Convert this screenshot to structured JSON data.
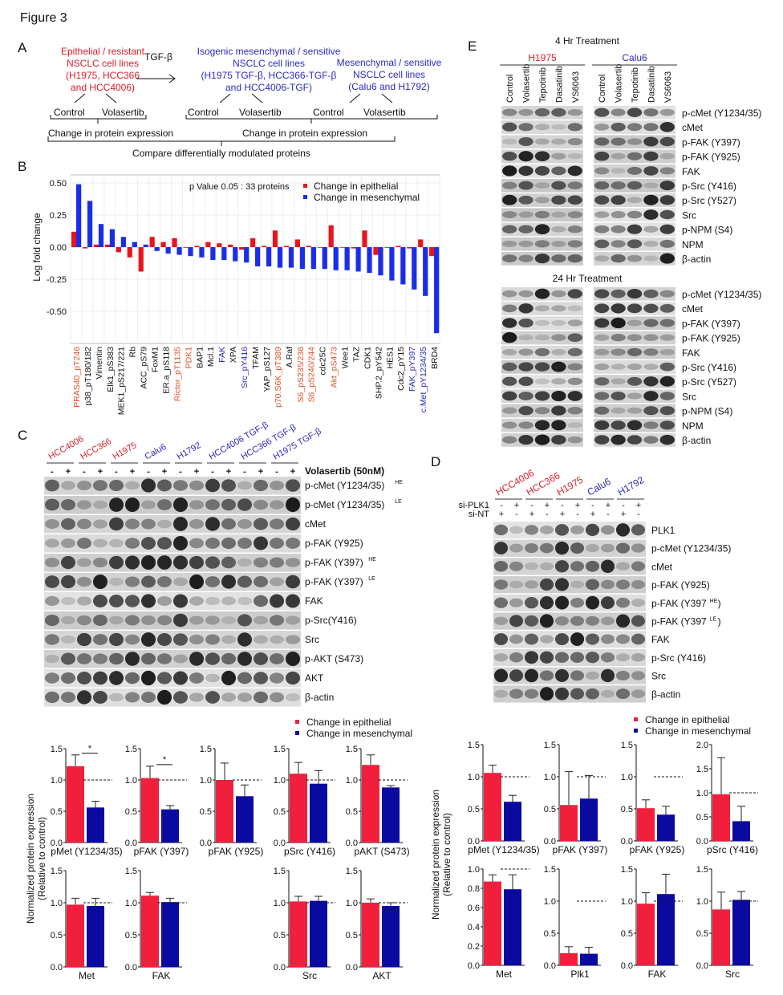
{
  "figure_title": "Figure 3",
  "panel_letters": {
    "a": "A",
    "b": "B",
    "c": "C",
    "d": "D",
    "e": "E"
  },
  "panel_a": {
    "epithelial": [
      "Epithelial / resistant",
      "NSCLC cell lines",
      "(H1975, HCC366",
      "and HCC4006)"
    ],
    "arrow_label": "TGF-β",
    "isogenic": [
      "Isogenic mesenchymal / sensitive",
      "NSCLC cell lines",
      "(H1975 TGF-β, HCC366-TGF-β",
      "and HCC4006-TGF)"
    ],
    "mesenchymal": [
      "Mesenchymal / sensitive",
      "NSCLC cell lines",
      "(Calu6 and H1792)"
    ],
    "control": "Control",
    "volasertib": "Volasertib",
    "change": "Change in protein expression",
    "compare": "Compare differentially modulated proteins",
    "colors": {
      "epithelial": "#d8202a",
      "mesenchymal": "#2a2ac0"
    }
  },
  "legend": {
    "epithelial": "Change in epithelial",
    "mesenchymal": "Change in mesenchymal"
  },
  "chart_data": [
    {
      "id": "B",
      "type": "bar",
      "ylabel": "Log fold change",
      "annotation": "p Value 0.05 : 33 proteins",
      "ylim": [
        -0.75,
        0.55
      ],
      "yticks": [
        "0.50",
        "0.25",
        "0.00",
        "-0.25",
        "-0.50"
      ],
      "grid": true,
      "legend_position": "top-right",
      "categories": [
        "PRAS40_pT246",
        "p38_pT180/182",
        "Vimentin",
        "Elk1_pS383",
        "MEK1_pS217/221",
        "Rb",
        "ACC_pS79",
        "FoxM1",
        "ER.a_pS118",
        "Rictor_pT1135",
        "PDK1",
        "BAP1",
        "Mcl.1",
        "FAK",
        "XPA",
        "Src_pY416",
        "TFAM",
        "YAP_pS127",
        "p70.S6K_pT389",
        "A.Raf",
        "S6_pS235/236",
        "S6_pS240/244",
        "cdc25C",
        "Akt_pS473",
        "Wee1",
        "TAZ",
        "CDK1",
        "SHP.2_pY542",
        "HES1",
        "Cdc2_pY15",
        "FAK_pY397",
        "c.Met_pY1234/35",
        "BRD4"
      ],
      "category_colors": [
        "orange",
        "black",
        "black",
        "black",
        "black",
        "black",
        "black",
        "black",
        "black",
        "orange",
        "orange",
        "black",
        "black",
        "blue",
        "black",
        "blue",
        "black",
        "black",
        "orange",
        "black",
        "orange",
        "orange",
        "black",
        "orange",
        "black",
        "black",
        "black",
        "black",
        "black",
        "black",
        "blue",
        "blue",
        "black"
      ],
      "label_colors": {
        "orange": "#e0522a",
        "blue": "#2a2ac0",
        "black": "#111111"
      },
      "series": [
        {
          "name": "Change in epithelial",
          "color": "#e8141c",
          "values": [
            0.12,
            -0.01,
            0.02,
            0.02,
            -0.04,
            -0.08,
            -0.19,
            0.08,
            0.04,
            0.07,
            0.0,
            0.01,
            0.04,
            0.03,
            0.02,
            -0.02,
            0.07,
            0.01,
            0.13,
            0.01,
            0.06,
            0.01,
            0.0,
            0.17,
            0.0,
            -0.01,
            0.13,
            -0.06,
            0.0,
            0.01,
            -0.01,
            0.06,
            -0.07
          ]
        },
        {
          "name": "Change in mesenchymal",
          "color": "#1a2ee8",
          "values": [
            0.49,
            0.36,
            0.18,
            0.14,
            0.08,
            0.04,
            0.02,
            -0.03,
            -0.05,
            -0.06,
            -0.07,
            -0.08,
            -0.1,
            -0.1,
            -0.11,
            -0.12,
            -0.15,
            -0.15,
            -0.16,
            -0.16,
            -0.17,
            -0.17,
            -0.17,
            -0.18,
            -0.18,
            -0.19,
            -0.2,
            -0.22,
            -0.26,
            -0.29,
            -0.33,
            -0.38,
            -0.67
          ]
        }
      ]
    },
    {
      "id": "C1",
      "type": "bar",
      "xlabel": "pMet (Y1234/35)",
      "ylim": [
        0,
        1.5
      ],
      "yticks": [
        "0.0",
        "0.5",
        "1.0",
        "1.5"
      ],
      "reference": 1.0,
      "values": [
        1.22,
        0.56
      ],
      "errors": [
        0.18,
        0.1
      ],
      "significance": "*"
    },
    {
      "id": "C2",
      "type": "bar",
      "xlabel": "pFAK (Y397)",
      "ylim": [
        0,
        1.5
      ],
      "yticks": [
        "0.0",
        "0.5",
        "1.0",
        "1.5"
      ],
      "reference": 1.0,
      "values": [
        1.03,
        0.53
      ],
      "errors": [
        0.19,
        0.06
      ],
      "significance": "*"
    },
    {
      "id": "C3",
      "type": "bar",
      "xlabel": "pFAK (Y925)",
      "ylim": [
        0,
        1.5
      ],
      "yticks": [
        "0.0",
        "0.5",
        "1.0",
        "1.5"
      ],
      "reference": 1.0,
      "values": [
        1.0,
        0.74
      ],
      "errors": [
        0.27,
        0.18
      ]
    },
    {
      "id": "C4",
      "type": "bar",
      "xlabel": "pSrc (Y416)",
      "ylim": [
        0,
        1.5
      ],
      "yticks": [
        "0.0",
        "0.5",
        "1.0",
        "1.5"
      ],
      "reference": 1.0,
      "values": [
        1.1,
        0.94
      ],
      "errors": [
        0.18,
        0.21
      ]
    },
    {
      "id": "C5",
      "type": "bar",
      "xlabel": "pAKT (S473)",
      "ylim": [
        0,
        1.5
      ],
      "yticks": [
        "0.0",
        "0.5",
        "1.0",
        "1.5"
      ],
      "reference": 1.0,
      "values": [
        1.24,
        0.88
      ],
      "errors": [
        0.16,
        0.03
      ]
    },
    {
      "id": "C6",
      "type": "bar",
      "xlabel": "Met",
      "ylim": [
        0,
        1.5
      ],
      "yticks": [
        "0.0",
        "0.5",
        "1.0",
        "1.5"
      ],
      "reference": 1.0,
      "values": [
        0.97,
        0.95
      ],
      "errors": [
        0.1,
        0.12
      ]
    },
    {
      "id": "C7",
      "type": "bar",
      "xlabel": "FAK",
      "ylim": [
        0,
        1.5
      ],
      "yticks": [
        "0.0",
        "0.5",
        "1.0",
        "1.5"
      ],
      "reference": 1.0,
      "values": [
        1.11,
        1.01
      ],
      "errors": [
        0.05,
        0.06
      ]
    },
    {
      "id": "C8",
      "type": "bar",
      "xlabel": "Src",
      "ylim": [
        0,
        1.5
      ],
      "yticks": [
        "0.0",
        "0.5",
        "1.0",
        "1.5"
      ],
      "reference": 1.0,
      "values": [
        1.02,
        1.03
      ],
      "errors": [
        0.08,
        0.07
      ]
    },
    {
      "id": "C9",
      "type": "bar",
      "xlabel": "AKT",
      "ylim": [
        0,
        1.5
      ],
      "yticks": [
        "0.0",
        "0.5",
        "1.0",
        "1.5"
      ],
      "reference": 1.0,
      "values": [
        1.0,
        0.95
      ],
      "errors": [
        0.06,
        0.05
      ]
    },
    {
      "id": "D1",
      "type": "bar",
      "xlabel": "pMet (Y1234/35)",
      "ylim": [
        0,
        1.5
      ],
      "yticks": [
        "0.0",
        "0.5",
        "1.0",
        "1.5"
      ],
      "reference": 1.0,
      "values": [
        1.06,
        0.61
      ],
      "errors": [
        0.12,
        0.1
      ]
    },
    {
      "id": "D2",
      "type": "bar",
      "xlabel": "pFAK (Y397)",
      "ylim": [
        0,
        1.5
      ],
      "yticks": [
        "0.0",
        "0.5",
        "1.0",
        "1.5"
      ],
      "reference": 1.0,
      "values": [
        0.56,
        0.66
      ],
      "errors": [
        0.52,
        0.36
      ]
    },
    {
      "id": "D3",
      "type": "bar",
      "xlabel": "pFAK (Y925)",
      "ylim": [
        0,
        1.5
      ],
      "yticks": [
        "0.0",
        "0.5",
        "1.0",
        "1.5"
      ],
      "reference": 1.0,
      "values": [
        0.51,
        0.41
      ],
      "errors": [
        0.13,
        0.13
      ]
    },
    {
      "id": "D4",
      "type": "bar",
      "xlabel": "pSrc (Y416)",
      "ylim": [
        0,
        2.0
      ],
      "yticks": [
        "0.0",
        "0.5",
        "1.0",
        "1.5",
        "2.0"
      ],
      "reference": 1.0,
      "values": [
        0.97,
        0.41
      ],
      "errors": [
        0.76,
        0.31
      ]
    },
    {
      "id": "D5",
      "type": "bar",
      "xlabel": "Met",
      "ylim": [
        0,
        1.0
      ],
      "yticks": [
        "0.0",
        "0.2",
        "0.4",
        "0.6",
        "0.8",
        "1.0"
      ],
      "reference": 1.0,
      "values": [
        0.87,
        0.79
      ],
      "errors": [
        0.07,
        0.15
      ]
    },
    {
      "id": "D6",
      "type": "bar",
      "xlabel": "Plk1",
      "ylim": [
        0,
        1.5
      ],
      "yticks": [
        "0.0",
        "0.5",
        "1.0",
        "1.5"
      ],
      "reference": 1.0,
      "values": [
        0.19,
        0.18
      ],
      "errors": [
        0.1,
        0.1
      ]
    },
    {
      "id": "D7",
      "type": "bar",
      "xlabel": "FAK",
      "ylim": [
        0,
        1.5
      ],
      "yticks": [
        "0.0",
        "0.5",
        "1.0",
        "1.5"
      ],
      "reference": 1.0,
      "values": [
        0.96,
        1.11
      ],
      "errors": [
        0.17,
        0.31
      ]
    },
    {
      "id": "D8",
      "type": "bar",
      "xlabel": "Src",
      "ylim": [
        0,
        1.5
      ],
      "yticks": [
        "0.0",
        "0.5",
        "1.0",
        "1.5"
      ],
      "reference": 1.0,
      "values": [
        0.87,
        1.02
      ],
      "errors": [
        0.27,
        0.13
      ]
    }
  ],
  "bar_colors": {
    "epithelial": "#f0203c",
    "mesenchymal": "#0a0aa0"
  },
  "small_chart_ylabel": [
    "Normalized protein expression",
    "(Relative to control)"
  ],
  "panel_c_blot": {
    "groups": [
      {
        "name": "HCC4006",
        "color": "#d8202a"
      },
      {
        "name": "HCC366",
        "color": "#d8202a"
      },
      {
        "name": "H1975",
        "color": "#d8202a"
      },
      {
        "name": "Calu6",
        "color": "#2a2ac0"
      },
      {
        "name": "H1792",
        "color": "#2a2ac0"
      },
      {
        "name": "HCC4006 TGF-β",
        "color": "#2a2ac0"
      },
      {
        "name": "HCC366 TGF-β",
        "color": "#2a2ac0"
      },
      {
        "name": "H1975 TGF-β",
        "color": "#2a2ac0"
      }
    ],
    "lane_signs": [
      "-",
      "+"
    ],
    "treatment": "Volasertib (50nM)",
    "rows": [
      {
        "label": "p-cMet (Y1234/35)",
        "sup": "HE"
      },
      {
        "label": "p-cMet (Y1234/35)",
        "sup": "LE"
      },
      {
        "label": "cMet",
        "sup": ""
      },
      {
        "label": "p-FAK (Y925)",
        "sup": ""
      },
      {
        "label": "p-FAK (Y397)",
        "sup": "HE"
      },
      {
        "label": "p-FAK (Y397)",
        "sup": "LE"
      },
      {
        "label": "FAK",
        "sup": ""
      },
      {
        "label": "p-Src(Y416)",
        "sup": ""
      },
      {
        "label": "Src",
        "sup": ""
      },
      {
        "label": "p-AKT (S473)",
        "sup": ""
      },
      {
        "label": "AKT",
        "sup": ""
      },
      {
        "label": "β-actin",
        "sup": ""
      }
    ]
  },
  "panel_d_blot": {
    "groups": [
      {
        "name": "HCC4006",
        "color": "#d8202a"
      },
      {
        "name": "HCC366",
        "color": "#d8202a"
      },
      {
        "name": "H1975",
        "color": "#d8202a"
      },
      {
        "name": "Calu6",
        "color": "#2a2ac0"
      },
      {
        "name": "H1792",
        "color": "#2a2ac0"
      }
    ],
    "conditions": [
      {
        "label": "si-PLK1",
        "signs": [
          "-",
          "+"
        ]
      },
      {
        "label": "si-NT",
        "signs": [
          "+",
          "-"
        ]
      }
    ],
    "rows": [
      {
        "label": "PLK1",
        "sup": "",
        "tail": ""
      },
      {
        "label": "p-cMet (Y1234/35)",
        "sup": "",
        "tail": ""
      },
      {
        "label": "cMet",
        "sup": "",
        "tail": ""
      },
      {
        "label": "p-FAK (Y925)",
        "sup": "",
        "tail": ""
      },
      {
        "label": "p-FAK (Y397",
        "sup": "HE",
        "tail": ")"
      },
      {
        "label": "p-FAK (Y397",
        "sup": "LE",
        "tail": ")"
      },
      {
        "label": "FAK",
        "sup": "",
        "tail": ""
      },
      {
        "label": "p-Src (Y416)",
        "sup": "",
        "tail": ""
      },
      {
        "label": "Src",
        "sup": "",
        "tail": ""
      },
      {
        "label": "β-actin",
        "sup": "",
        "tail": ""
      }
    ]
  },
  "panel_e_blot": {
    "timepoints": [
      "4 Hr Treatment",
      "24 Hr Treatment"
    ],
    "cell_lines": [
      {
        "name": "H1975",
        "color": "#d8202a"
      },
      {
        "name": "Calu6",
        "color": "#2a2ac0"
      }
    ],
    "treatments": [
      "Control",
      "Volasertib",
      "Tepotinib",
      "Dasatinib",
      "VS6063"
    ],
    "rows": [
      "p-cMet (Y1234/35)",
      "cMet",
      "p-FAK (Y397)",
      "p-FAK (Y925)",
      "FAK",
      "p-Src (Y416)",
      "p-Src (Y527)",
      "Src",
      "p-NPM (S4)",
      "NPM",
      "β-actin"
    ]
  }
}
